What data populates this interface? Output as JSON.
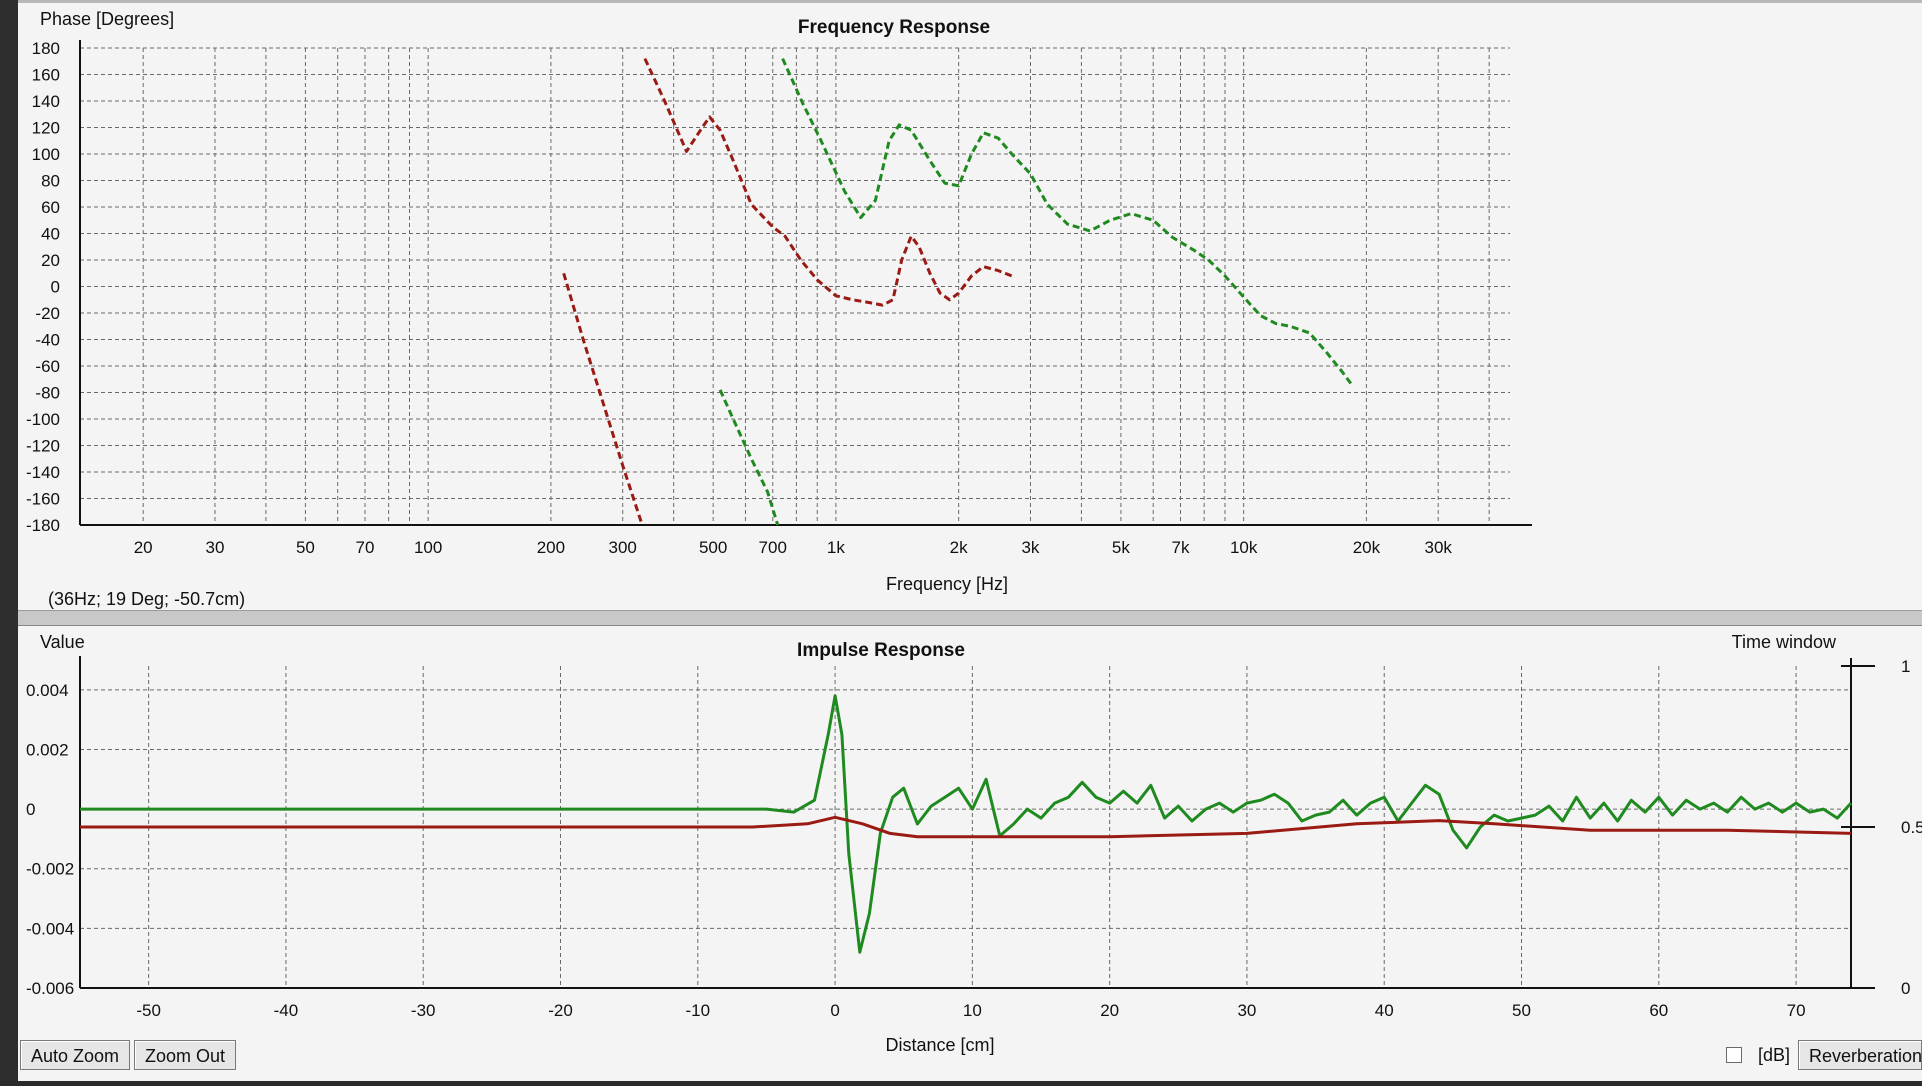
{
  "freq": {
    "title": "Frequency Response",
    "ylabel": "Phase [Degrees]",
    "xlabel": "Frequency [Hz]",
    "status": "(36Hz; 19 Deg; -50.7cm)",
    "yticks": [
      "180",
      "160",
      "140",
      "120",
      "100",
      "80",
      "60",
      "40",
      "20",
      "0",
      "-20",
      "-40",
      "-60",
      "-80",
      "-100",
      "-120",
      "-140",
      "-160",
      "-180"
    ],
    "xticks": [
      "20",
      "30",
      "50",
      "70",
      "100",
      "200",
      "300",
      "500",
      "700",
      "1k",
      "2k",
      "3k",
      "5k",
      "7k",
      "10k",
      "20k",
      "30k"
    ]
  },
  "impulse": {
    "title": "Impulse Response",
    "ylabel": "Value",
    "ylabel_right": "Time window",
    "xlabel": "Distance [cm]",
    "yticks": [
      "0.004",
      "0.002",
      "0",
      "-0.002",
      "-0.004",
      "-0.006"
    ],
    "yticks_right": [
      "1",
      "0.5",
      "0"
    ],
    "xticks": [
      "-50",
      "-40",
      "-30",
      "-20",
      "-10",
      "0",
      "10",
      "20",
      "30",
      "40",
      "50",
      "60",
      "70"
    ]
  },
  "controls": {
    "auto_zoom": "Auto Zoom",
    "zoom_out": "Zoom Out",
    "db_label": "[dB]",
    "reverberation": "Reverberation"
  },
  "colors": {
    "red_series": "#9a1a14",
    "green_series": "#1f8a1f",
    "grid": "#6a6a6a",
    "background": "#f4f4f4"
  },
  "chart_data": [
    {
      "type": "line",
      "title": "Frequency Response",
      "xlabel": "Frequency [Hz]",
      "ylabel": "Phase [Degrees]",
      "xscale": "log",
      "xlim": [
        14,
        45000
      ],
      "ylim": [
        -180,
        180
      ],
      "grid": true,
      "line_style": "dashed",
      "series": [
        {
          "color": "#9a1a14",
          "points": [
            [
              215,
              10
            ],
            [
              240,
              -40
            ],
            [
              270,
              -90
            ],
            [
              300,
              -135
            ],
            [
              335,
              -180
            ]
          ]
        },
        {
          "color": "#9a1a14",
          "points": [
            [
              340,
              172
            ],
            [
              380,
              140
            ],
            [
              430,
              102
            ],
            [
              470,
              120
            ],
            [
              490,
              128
            ],
            [
              520,
              118
            ],
            [
              560,
              95
            ],
            [
              620,
              62
            ],
            [
              700,
              45
            ],
            [
              750,
              38
            ],
            [
              820,
              20
            ],
            [
              900,
              5
            ],
            [
              1000,
              -7
            ],
            [
              1100,
              -10
            ],
            [
              1200,
              -12
            ],
            [
              1300,
              -14
            ],
            [
              1380,
              -10
            ],
            [
              1450,
              20
            ],
            [
              1530,
              38
            ],
            [
              1600,
              30
            ],
            [
              1700,
              10
            ],
            [
              1800,
              -5
            ],
            [
              1900,
              -10
            ],
            [
              2000,
              -5
            ],
            [
              2150,
              8
            ],
            [
              2300,
              15
            ],
            [
              2500,
              12
            ],
            [
              2700,
              8
            ]
          ]
        },
        {
          "color": "#1f8a1f",
          "points": [
            [
              520,
              -78
            ],
            [
              560,
              -100
            ],
            [
              620,
              -130
            ],
            [
              680,
              -155
            ],
            [
              720,
              -180
            ]
          ]
        },
        {
          "color": "#1f8a1f",
          "points": [
            [
              740,
              172
            ],
            [
              830,
              138
            ],
            [
              920,
              110
            ],
            [
              1050,
              72
            ],
            [
              1150,
              52
            ],
            [
              1250,
              65
            ],
            [
              1350,
              110
            ],
            [
              1430,
              122
            ],
            [
              1530,
              118
            ],
            [
              1700,
              95
            ],
            [
              1850,
              78
            ],
            [
              2000,
              76
            ],
            [
              2150,
              100
            ],
            [
              2300,
              116
            ],
            [
              2500,
              112
            ],
            [
              2700,
              100
            ],
            [
              3000,
              85
            ],
            [
              3300,
              62
            ],
            [
              3700,
              47
            ],
            [
              4200,
              42
            ],
            [
              4700,
              50
            ],
            [
              5300,
              55
            ],
            [
              6000,
              50
            ],
            [
              6700,
              37
            ],
            [
              7500,
              28
            ],
            [
              8200,
              20
            ],
            [
              9000,
              8
            ],
            [
              10000,
              -8
            ],
            [
              11000,
              -22
            ],
            [
              12000,
              -28
            ],
            [
              13000,
              -30
            ],
            [
              14500,
              -35
            ],
            [
              16000,
              -50
            ],
            [
              17500,
              -65
            ],
            [
              18500,
              -75
            ]
          ]
        }
      ]
    },
    {
      "type": "line",
      "title": "Impulse Response",
      "xlabel": "Distance [cm]",
      "ylabel": "Value",
      "ylabel_right": "Time window",
      "xlim": [
        -55,
        74
      ],
      "ylim": [
        -0.006,
        0.0048
      ],
      "y2lim": [
        0,
        1
      ],
      "grid": true,
      "line_style": "solid",
      "series": [
        {
          "color": "#1f8a1f",
          "points": [
            [
              -55,
              0
            ],
            [
              -5,
              0
            ],
            [
              -3,
              -0.0001
            ],
            [
              -1.5,
              0.0003
            ],
            [
              -0.5,
              0.0025
            ],
            [
              0,
              0.0038
            ],
            [
              0.5,
              0.0025
            ],
            [
              1,
              -0.0015
            ],
            [
              1.8,
              -0.0048
            ],
            [
              2.5,
              -0.0035
            ],
            [
              3.3,
              -0.0008
            ],
            [
              4.2,
              0.0004
            ],
            [
              5,
              0.0007
            ],
            [
              6,
              -0.0005
            ],
            [
              7,
              0.0001
            ],
            [
              8,
              0.0004
            ],
            [
              9,
              0.0007
            ],
            [
              10,
              0
            ],
            [
              11,
              0.001
            ],
            [
              12,
              -0.0009
            ],
            [
              13,
              -0.0005
            ],
            [
              14,
              0
            ],
            [
              15,
              -0.0003
            ],
            [
              16,
              0.0002
            ],
            [
              17,
              0.0004
            ],
            [
              18,
              0.0009
            ],
            [
              19,
              0.0004
            ],
            [
              20,
              0.0002
            ],
            [
              21,
              0.0006
            ],
            [
              22,
              0.0002
            ],
            [
              23,
              0.0008
            ],
            [
              24,
              -0.0003
            ],
            [
              25,
              0.0001
            ],
            [
              26,
              -0.0004
            ],
            [
              27,
              0
            ],
            [
              28,
              0.0002
            ],
            [
              29,
              -0.0001
            ],
            [
              30,
              0.0002
            ],
            [
              31,
              0.0003
            ],
            [
              32,
              0.0005
            ],
            [
              33,
              0.0002
            ],
            [
              34,
              -0.0004
            ],
            [
              35,
              -0.0002
            ],
            [
              36,
              -0.0001
            ],
            [
              37,
              0.0003
            ],
            [
              38,
              -0.0002
            ],
            [
              39,
              0.0002
            ],
            [
              40,
              0.0004
            ],
            [
              41,
              -0.0004
            ],
            [
              42,
              0.0002
            ],
            [
              43,
              0.0008
            ],
            [
              44,
              0.0005
            ],
            [
              45,
              -0.0007
            ],
            [
              46,
              -0.0013
            ],
            [
              47,
              -0.0006
            ],
            [
              48,
              -0.0002
            ],
            [
              49,
              -0.0004
            ],
            [
              50,
              -0.0003
            ],
            [
              51,
              -0.0002
            ],
            [
              52,
              0.0001
            ],
            [
              53,
              -0.0004
            ],
            [
              54,
              0.0004
            ],
            [
              55,
              -0.0003
            ],
            [
              56,
              0.0002
            ],
            [
              57,
              -0.0004
            ],
            [
              58,
              0.0003
            ],
            [
              59,
              -0.0001
            ],
            [
              60,
              0.0004
            ],
            [
              61,
              -0.0002
            ],
            [
              62,
              0.0003
            ],
            [
              63,
              0
            ],
            [
              64,
              0.0002
            ],
            [
              65,
              -0.0001
            ],
            [
              66,
              0.0004
            ],
            [
              67,
              0
            ],
            [
              68,
              0.0002
            ],
            [
              69,
              -0.0001
            ],
            [
              70,
              0.0002
            ],
            [
              71,
              -0.0001
            ],
            [
              72,
              0
            ],
            [
              73,
              -0.0003
            ],
            [
              74,
              0.0002
            ]
          ]
        },
        {
          "color": "#9a1a14",
          "axis": "right",
          "points": [
            [
              -55,
              0.5
            ],
            [
              -6,
              0.5
            ],
            [
              -2,
              0.51
            ],
            [
              0,
              0.53
            ],
            [
              2,
              0.51
            ],
            [
              4,
              0.48
            ],
            [
              6,
              0.47
            ],
            [
              10,
              0.47
            ],
            [
              20,
              0.47
            ],
            [
              30,
              0.48
            ],
            [
              38,
              0.51
            ],
            [
              44,
              0.52
            ],
            [
              48,
              0.51
            ],
            [
              55,
              0.49
            ],
            [
              65,
              0.49
            ],
            [
              74,
              0.48
            ]
          ]
        }
      ]
    }
  ]
}
